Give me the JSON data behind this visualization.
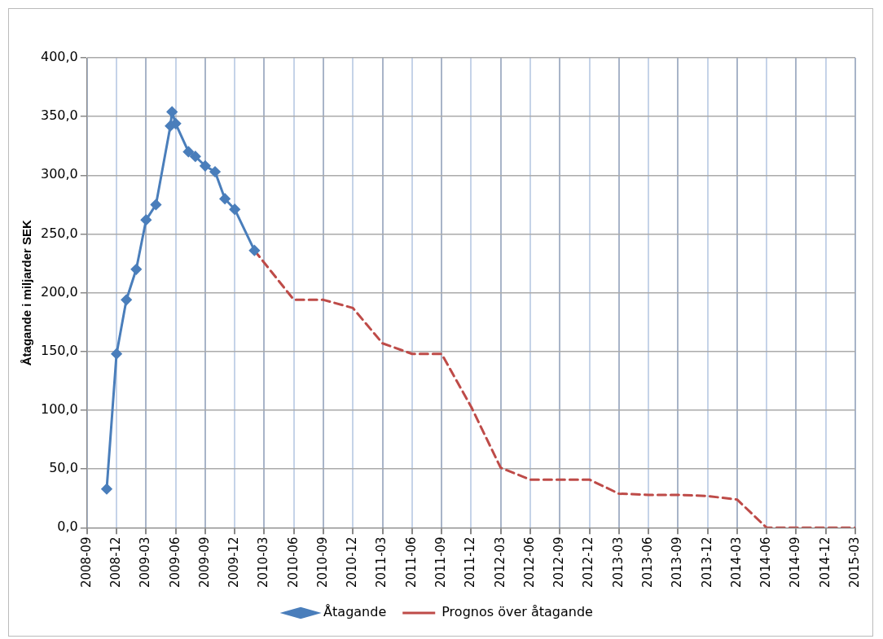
{
  "chart_data": {
    "type": "line",
    "ylabel": "Åtagande i miljarder SEK",
    "series": [
      {
        "name": "Åtagande",
        "color": "#4a7ebb",
        "marker": "diamond",
        "line_style": "solid",
        "x": [
          "2008-11",
          "2008-12",
          "2009-01",
          "2009-02",
          "2009-03",
          "2009-04",
          "2009-05-15",
          "2009-05-20",
          "2009-06",
          "2009-07-10",
          "2009-08",
          "2009-09",
          "2009-10",
          "2009-11",
          "2009-12",
          "2010-02"
        ],
        "values": [
          33,
          148,
          194,
          220,
          262,
          275,
          342,
          354,
          344,
          320,
          316,
          308,
          303,
          280,
          271,
          236
        ]
      },
      {
        "name": "Prognos över åtagande",
        "color": "#be4b48",
        "marker": "none",
        "line_style": "dashed",
        "x": [
          "2010-02",
          "2010-06",
          "2010-09",
          "2010-12",
          "2011-03",
          "2011-06",
          "2011-09",
          "2011-12",
          "2012-03",
          "2012-06",
          "2012-09",
          "2012-12",
          "2013-03",
          "2013-06",
          "2013-09",
          "2013-12",
          "2014-03",
          "2014-06",
          "2014-09",
          "2014-12",
          "2015-03"
        ],
        "values": [
          236,
          194,
          194,
          187,
          157,
          148,
          148,
          103,
          51,
          41,
          41,
          41,
          29,
          28,
          28,
          27,
          24,
          0,
          0,
          0,
          0
        ]
      }
    ],
    "xlim": [
      "2008-09",
      "2015-03"
    ],
    "xticks": [
      "2008-09",
      "2008-12",
      "2009-03",
      "2009-06",
      "2009-09",
      "2009-12",
      "2010-03",
      "2010-06",
      "2010-09",
      "2010-12",
      "2011-03",
      "2011-06",
      "2011-09",
      "2011-12",
      "2012-03",
      "2012-06",
      "2012-09",
      "2012-12",
      "2013-03",
      "2013-06",
      "2013-09",
      "2013-12",
      "2014-03",
      "2014-06",
      "2014-09",
      "2014-12",
      "2015-03"
    ],
    "ylim": [
      0,
      400
    ],
    "yticks": [
      {
        "value": 0,
        "label": "0,0"
      },
      {
        "value": 50,
        "label": "50,0"
      },
      {
        "value": 100,
        "label": "100,0"
      },
      {
        "value": 150,
        "label": "150,0"
      },
      {
        "value": 200,
        "label": "200,0"
      },
      {
        "value": 250,
        "label": "250,0"
      },
      {
        "value": 300,
        "label": "300,0"
      },
      {
        "value": 350,
        "label": "350,0"
      },
      {
        "value": 400,
        "label": "400,0"
      }
    ],
    "grid": true,
    "legend": "bottom"
  }
}
